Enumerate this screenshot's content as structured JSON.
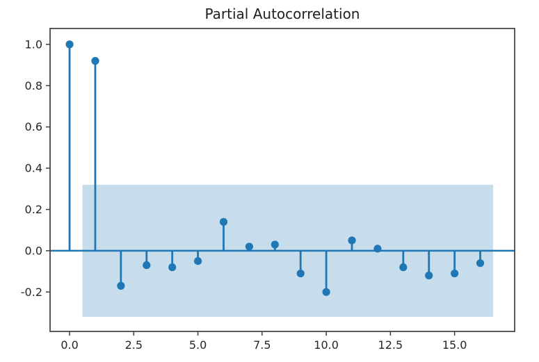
{
  "chart_data": {
    "type": "stem",
    "title": "Partial Autocorrelation",
    "xlabel": "",
    "ylabel": "",
    "x": [
      0,
      1,
      2,
      3,
      4,
      5,
      6,
      7,
      8,
      9,
      10,
      11,
      12,
      13,
      14,
      15,
      16
    ],
    "values": [
      1.0,
      0.92,
      -0.17,
      -0.07,
      -0.08,
      -0.05,
      0.14,
      0.02,
      0.03,
      -0.11,
      -0.2,
      0.05,
      0.01,
      -0.08,
      -0.12,
      -0.11,
      -0.06
    ],
    "confidence_band": {
      "low": -0.32,
      "high": 0.32,
      "x_start": 0.5,
      "x_end": 16.5
    },
    "xticks": [
      0.0,
      2.5,
      5.0,
      7.5,
      10.0,
      12.5,
      15.0
    ],
    "xtick_labels": [
      "0.0",
      "2.5",
      "5.0",
      "7.5",
      "10.0",
      "12.5",
      "15.0"
    ],
    "yticks": [
      -0.2,
      0.0,
      0.2,
      0.4,
      0.6,
      0.8,
      1.0
    ],
    "ytick_labels": [
      "-0.2",
      "0.0",
      "0.2",
      "0.4",
      "0.6",
      "0.8",
      "1.0"
    ],
    "xlim": [
      -0.76,
      17.34
    ],
    "ylim": [
      -0.391,
      1.077
    ],
    "grid": false,
    "legend": null,
    "colors": {
      "stem": "#1f77b4",
      "marker": "#1f77b4",
      "zero_line": "#1f77b4",
      "band": "#1f77b4",
      "band_opacity": 0.25,
      "spine": "#3d3d3d",
      "tick": "#3d3d3d",
      "text": "#262626",
      "background": "#ffffff"
    }
  }
}
